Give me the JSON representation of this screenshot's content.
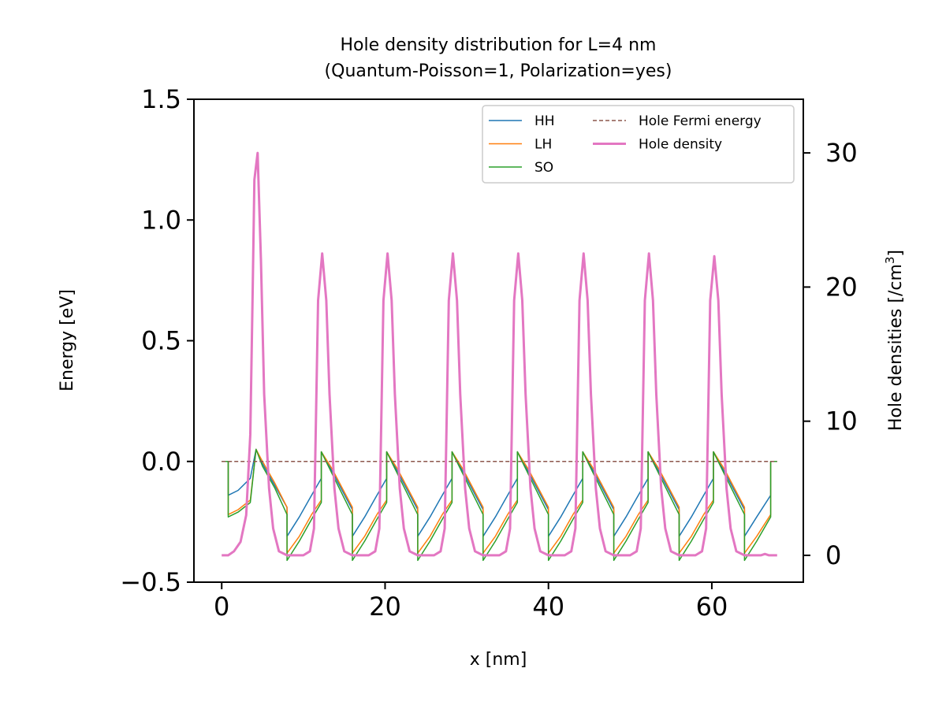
{
  "chart_data": {
    "type": "line",
    "title": "Hole density distribution for L=4 nm",
    "subtitle": "(Quantum-Poisson=1, Polarization=yes)",
    "xlabel": "x [nm]",
    "ylabel": "Energy [eV]",
    "y2label": "Hole densities [/cm3]",
    "xlim": [
      -3.4,
      71.2
    ],
    "ylim": [
      -0.5,
      1.5
    ],
    "y2lim": [
      -2,
      34
    ],
    "xticks": [
      0,
      20,
      40,
      60
    ],
    "yticks": [
      -0.5,
      0.0,
      0.5,
      1.0,
      1.5
    ],
    "y2ticks": [
      0,
      10,
      20,
      30
    ],
    "legend_position": "top-right",
    "legend_columns": 2,
    "series": [
      {
        "name": "HH",
        "axis": "left",
        "color": "#1f77b4",
        "style": "solid",
        "points": [
          [
            0,
            0
          ],
          [
            0.8,
            0
          ],
          [
            0.8,
            -0.14
          ],
          [
            2,
            -0.12
          ],
          [
            3.5,
            -0.07
          ],
          [
            4.2,
            0.05
          ],
          [
            5,
            -0.01
          ],
          [
            6.5,
            -0.1
          ],
          [
            8,
            -0.19
          ],
          [
            8,
            -0.31
          ],
          [
            9.5,
            -0.23
          ],
          [
            11,
            -0.14
          ],
          [
            12.2,
            -0.07
          ],
          [
            12.2,
            0.04
          ],
          [
            13.5,
            -0.04
          ],
          [
            16,
            -0.2
          ],
          [
            16,
            -0.31
          ],
          [
            17.5,
            -0.23
          ],
          [
            19,
            -0.14
          ],
          [
            20.2,
            -0.07
          ],
          [
            20.2,
            0.04
          ],
          [
            21.5,
            -0.04
          ],
          [
            24,
            -0.2
          ],
          [
            24,
            -0.31
          ],
          [
            25.5,
            -0.23
          ],
          [
            27,
            -0.14
          ],
          [
            28.2,
            -0.07
          ],
          [
            28.2,
            0.04
          ],
          [
            29.5,
            -0.04
          ],
          [
            32,
            -0.2
          ],
          [
            32,
            -0.31
          ],
          [
            33.5,
            -0.23
          ],
          [
            35,
            -0.14
          ],
          [
            36.2,
            -0.07
          ],
          [
            36.2,
            0.04
          ],
          [
            37.5,
            -0.04
          ],
          [
            40,
            -0.2
          ],
          [
            40,
            -0.31
          ],
          [
            41.5,
            -0.23
          ],
          [
            43,
            -0.14
          ],
          [
            44.2,
            -0.07
          ],
          [
            44.2,
            0.04
          ],
          [
            45.5,
            -0.04
          ],
          [
            48,
            -0.2
          ],
          [
            48,
            -0.31
          ],
          [
            49.5,
            -0.23
          ],
          [
            51,
            -0.14
          ],
          [
            52.2,
            -0.07
          ],
          [
            52.2,
            0.04
          ],
          [
            53.5,
            -0.04
          ],
          [
            56,
            -0.2
          ],
          [
            56,
            -0.31
          ],
          [
            57.5,
            -0.23
          ],
          [
            59,
            -0.14
          ],
          [
            60.2,
            -0.07
          ],
          [
            60.2,
            0.04
          ],
          [
            61.5,
            -0.04
          ],
          [
            64,
            -0.2
          ],
          [
            64,
            -0.31
          ],
          [
            65.5,
            -0.23
          ],
          [
            67.2,
            -0.14
          ],
          [
            67.2,
            0
          ],
          [
            68,
            0
          ]
        ]
      },
      {
        "name": "LH",
        "axis": "left",
        "color": "#ff7f0e",
        "style": "solid",
        "points": [
          [
            0,
            0
          ],
          [
            0.8,
            0
          ],
          [
            0.8,
            -0.22
          ],
          [
            2,
            -0.2
          ],
          [
            3.5,
            -0.16
          ],
          [
            4.2,
            0.05
          ],
          [
            5,
            0
          ],
          [
            6.5,
            -0.09
          ],
          [
            8,
            -0.19
          ],
          [
            8,
            -0.38
          ],
          [
            9.5,
            -0.31
          ],
          [
            11,
            -0.22
          ],
          [
            12.2,
            -0.16
          ],
          [
            12.2,
            0.04
          ],
          [
            13.5,
            -0.03
          ],
          [
            16,
            -0.19
          ],
          [
            16,
            -0.38
          ],
          [
            17.5,
            -0.31
          ],
          [
            19,
            -0.22
          ],
          [
            20.2,
            -0.16
          ],
          [
            20.2,
            0.04
          ],
          [
            21.5,
            -0.03
          ],
          [
            24,
            -0.19
          ],
          [
            24,
            -0.38
          ],
          [
            25.5,
            -0.31
          ],
          [
            27,
            -0.22
          ],
          [
            28.2,
            -0.16
          ],
          [
            28.2,
            0.04
          ],
          [
            29.5,
            -0.03
          ],
          [
            32,
            -0.19
          ],
          [
            32,
            -0.38
          ],
          [
            33.5,
            -0.31
          ],
          [
            35,
            -0.22
          ],
          [
            36.2,
            -0.16
          ],
          [
            36.2,
            0.04
          ],
          [
            37.5,
            -0.03
          ],
          [
            40,
            -0.19
          ],
          [
            40,
            -0.38
          ],
          [
            41.5,
            -0.31
          ],
          [
            43,
            -0.22
          ],
          [
            44.2,
            -0.16
          ],
          [
            44.2,
            0.04
          ],
          [
            45.5,
            -0.03
          ],
          [
            48,
            -0.19
          ],
          [
            48,
            -0.38
          ],
          [
            49.5,
            -0.31
          ],
          [
            51,
            -0.22
          ],
          [
            52.2,
            -0.16
          ],
          [
            52.2,
            0.04
          ],
          [
            53.5,
            -0.03
          ],
          [
            56,
            -0.19
          ],
          [
            56,
            -0.38
          ],
          [
            57.5,
            -0.31
          ],
          [
            59,
            -0.22
          ],
          [
            60.2,
            -0.16
          ],
          [
            60.2,
            0.04
          ],
          [
            61.5,
            -0.03
          ],
          [
            64,
            -0.19
          ],
          [
            64,
            -0.38
          ],
          [
            65.5,
            -0.31
          ],
          [
            67.2,
            -0.22
          ],
          [
            67.2,
            0
          ],
          [
            68,
            0
          ]
        ]
      },
      {
        "name": "SO",
        "axis": "left",
        "color": "#2ca02c",
        "style": "solid",
        "points": [
          [
            0,
            0
          ],
          [
            0.8,
            0
          ],
          [
            0.8,
            -0.23
          ],
          [
            2,
            -0.21
          ],
          [
            3.5,
            -0.17
          ],
          [
            4.2,
            0.05
          ],
          [
            5,
            -0.02
          ],
          [
            6.5,
            -0.11
          ],
          [
            8,
            -0.22
          ],
          [
            8,
            -0.41
          ],
          [
            9.5,
            -0.33
          ],
          [
            11,
            -0.24
          ],
          [
            12.2,
            -0.17
          ],
          [
            12.2,
            0.04
          ],
          [
            13.5,
            -0.05
          ],
          [
            16,
            -0.22
          ],
          [
            16,
            -0.41
          ],
          [
            17.5,
            -0.33
          ],
          [
            19,
            -0.24
          ],
          [
            20.2,
            -0.17
          ],
          [
            20.2,
            0.04
          ],
          [
            21.5,
            -0.05
          ],
          [
            24,
            -0.22
          ],
          [
            24,
            -0.41
          ],
          [
            25.5,
            -0.33
          ],
          [
            27,
            -0.24
          ],
          [
            28.2,
            -0.17
          ],
          [
            28.2,
            0.04
          ],
          [
            29.5,
            -0.05
          ],
          [
            32,
            -0.22
          ],
          [
            32,
            -0.41
          ],
          [
            33.5,
            -0.33
          ],
          [
            35,
            -0.24
          ],
          [
            36.2,
            -0.17
          ],
          [
            36.2,
            0.04
          ],
          [
            37.5,
            -0.05
          ],
          [
            40,
            -0.22
          ],
          [
            40,
            -0.41
          ],
          [
            41.5,
            -0.33
          ],
          [
            43,
            -0.24
          ],
          [
            44.2,
            -0.17
          ],
          [
            44.2,
            0.04
          ],
          [
            45.5,
            -0.05
          ],
          [
            48,
            -0.22
          ],
          [
            48,
            -0.41
          ],
          [
            49.5,
            -0.33
          ],
          [
            51,
            -0.24
          ],
          [
            52.2,
            -0.17
          ],
          [
            52.2,
            0.04
          ],
          [
            53.5,
            -0.05
          ],
          [
            56,
            -0.22
          ],
          [
            56,
            -0.41
          ],
          [
            57.5,
            -0.33
          ],
          [
            59,
            -0.24
          ],
          [
            60.2,
            -0.17
          ],
          [
            60.2,
            0.04
          ],
          [
            61.5,
            -0.05
          ],
          [
            64,
            -0.22
          ],
          [
            64,
            -0.41
          ],
          [
            65.5,
            -0.33
          ],
          [
            67.2,
            -0.23
          ],
          [
            67.2,
            0
          ],
          [
            68,
            0
          ]
        ]
      },
      {
        "name": "Hole Fermi energy",
        "axis": "left",
        "color": "#8c564b",
        "style": "dashed",
        "points": [
          [
            0,
            0
          ],
          [
            68,
            0
          ]
        ]
      },
      {
        "name": "Hole density",
        "axis": "right",
        "color": "#e377c2",
        "style": "solid",
        "points": [
          [
            0,
            0
          ],
          [
            0.8,
            0
          ],
          [
            1.5,
            0.3
          ],
          [
            2.3,
            1
          ],
          [
            3,
            3
          ],
          [
            3.5,
            9
          ],
          [
            3.8,
            20
          ],
          [
            4.0,
            28
          ],
          [
            4.4,
            30
          ],
          [
            4.8,
            22
          ],
          [
            5.2,
            12
          ],
          [
            5.8,
            5
          ],
          [
            6.3,
            2
          ],
          [
            7,
            0.3
          ],
          [
            8,
            0
          ],
          [
            10,
            0
          ],
          [
            10.8,
            0.3
          ],
          [
            11.3,
            2
          ],
          [
            11.8,
            19
          ],
          [
            12.3,
            22.5
          ],
          [
            12.8,
            19
          ],
          [
            13.2,
            12
          ],
          [
            13.8,
            5
          ],
          [
            14.3,
            2
          ],
          [
            15,
            0.3
          ],
          [
            16,
            0
          ],
          [
            18,
            0
          ],
          [
            18.8,
            0.3
          ],
          [
            19.3,
            2
          ],
          [
            19.8,
            19
          ],
          [
            20.3,
            22.5
          ],
          [
            20.8,
            19
          ],
          [
            21.2,
            12
          ],
          [
            21.8,
            5
          ],
          [
            22.3,
            2
          ],
          [
            23,
            0.3
          ],
          [
            24,
            0
          ],
          [
            26,
            0
          ],
          [
            26.8,
            0.3
          ],
          [
            27.3,
            2
          ],
          [
            27.8,
            19
          ],
          [
            28.3,
            22.5
          ],
          [
            28.8,
            19
          ],
          [
            29.2,
            12
          ],
          [
            29.8,
            5
          ],
          [
            30.3,
            2
          ],
          [
            31,
            0.3
          ],
          [
            32,
            0
          ],
          [
            34,
            0
          ],
          [
            34.8,
            0.3
          ],
          [
            35.3,
            2
          ],
          [
            35.8,
            19
          ],
          [
            36.3,
            22.5
          ],
          [
            36.8,
            19
          ],
          [
            37.2,
            12
          ],
          [
            37.8,
            5
          ],
          [
            38.3,
            2
          ],
          [
            39,
            0.3
          ],
          [
            40,
            0
          ],
          [
            42,
            0
          ],
          [
            42.8,
            0.3
          ],
          [
            43.3,
            2
          ],
          [
            43.8,
            19
          ],
          [
            44.3,
            22.5
          ],
          [
            44.8,
            19
          ],
          [
            45.2,
            12
          ],
          [
            45.8,
            5
          ],
          [
            46.3,
            2
          ],
          [
            47,
            0.3
          ],
          [
            48,
            0
          ],
          [
            50,
            0
          ],
          [
            50.8,
            0.3
          ],
          [
            51.3,
            2
          ],
          [
            51.8,
            19
          ],
          [
            52.3,
            22.5
          ],
          [
            52.8,
            19
          ],
          [
            53.2,
            12
          ],
          [
            53.8,
            5
          ],
          [
            54.3,
            2
          ],
          [
            55,
            0.3
          ],
          [
            56,
            0
          ],
          [
            58,
            0
          ],
          [
            58.8,
            0.3
          ],
          [
            59.3,
            2
          ],
          [
            59.8,
            19
          ],
          [
            60.3,
            22.3
          ],
          [
            60.8,
            19
          ],
          [
            61.2,
            12
          ],
          [
            61.8,
            5
          ],
          [
            62.3,
            2
          ],
          [
            63,
            0.3
          ],
          [
            64,
            0
          ],
          [
            66,
            0
          ],
          [
            66.5,
            0.1
          ],
          [
            67,
            0
          ],
          [
            68,
            0
          ]
        ]
      }
    ]
  }
}
